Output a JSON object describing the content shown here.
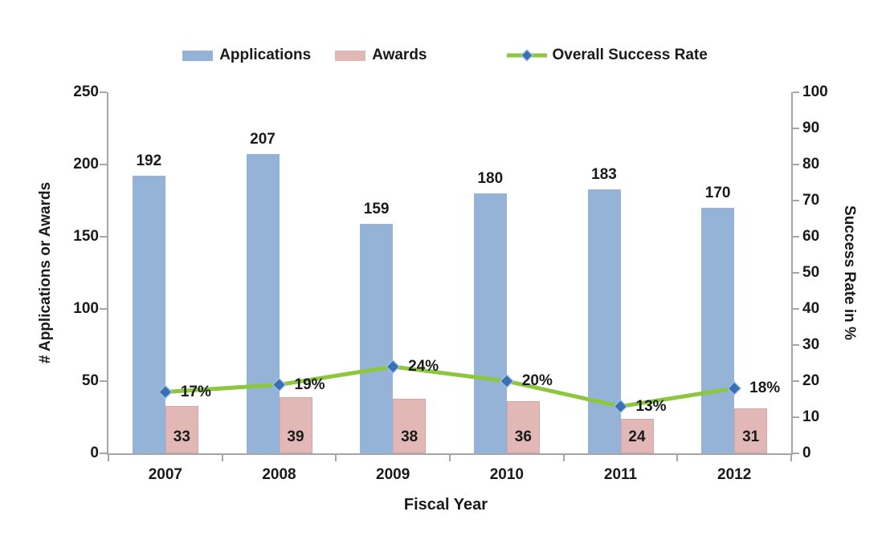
{
  "chart_data": {
    "type": "bar",
    "subtype": "grouped-bars-with-line-overlay",
    "categories": [
      "2007",
      "2008",
      "2009",
      "2010",
      "2011",
      "2012"
    ],
    "series": [
      {
        "name": "Applications",
        "render": "bar",
        "axis": "left",
        "values": [
          192,
          207,
          159,
          180,
          183,
          170
        ],
        "color": "#95B3D7"
      },
      {
        "name": "Awards",
        "render": "bar",
        "axis": "left",
        "values": [
          33,
          39,
          38,
          36,
          24,
          31
        ],
        "color": "#E2B8B7"
      },
      {
        "name": "Overall Success Rate",
        "render": "line",
        "axis": "right",
        "values": [
          17,
          19,
          24,
          20,
          13,
          18
        ],
        "point_labels": [
          "17%",
          "19%",
          "24%",
          "20%",
          "13%",
          "18%"
        ],
        "color": "#8DC63F",
        "marker": "diamond",
        "marker_fill": "#3A6EB5",
        "marker_stroke": "#9DC3E6"
      }
    ],
    "left_axis": {
      "title": "# Applications or Awards",
      "min": 0,
      "max": 250,
      "step": 50
    },
    "right_axis": {
      "title": "Success Rate in %",
      "min": 0,
      "max": 100,
      "step": 10
    },
    "xlabel": "Fiscal Year",
    "legend_position": "top",
    "grid": false,
    "axis_color": "#A6A6A6",
    "text_color": "#1a1a1a"
  }
}
